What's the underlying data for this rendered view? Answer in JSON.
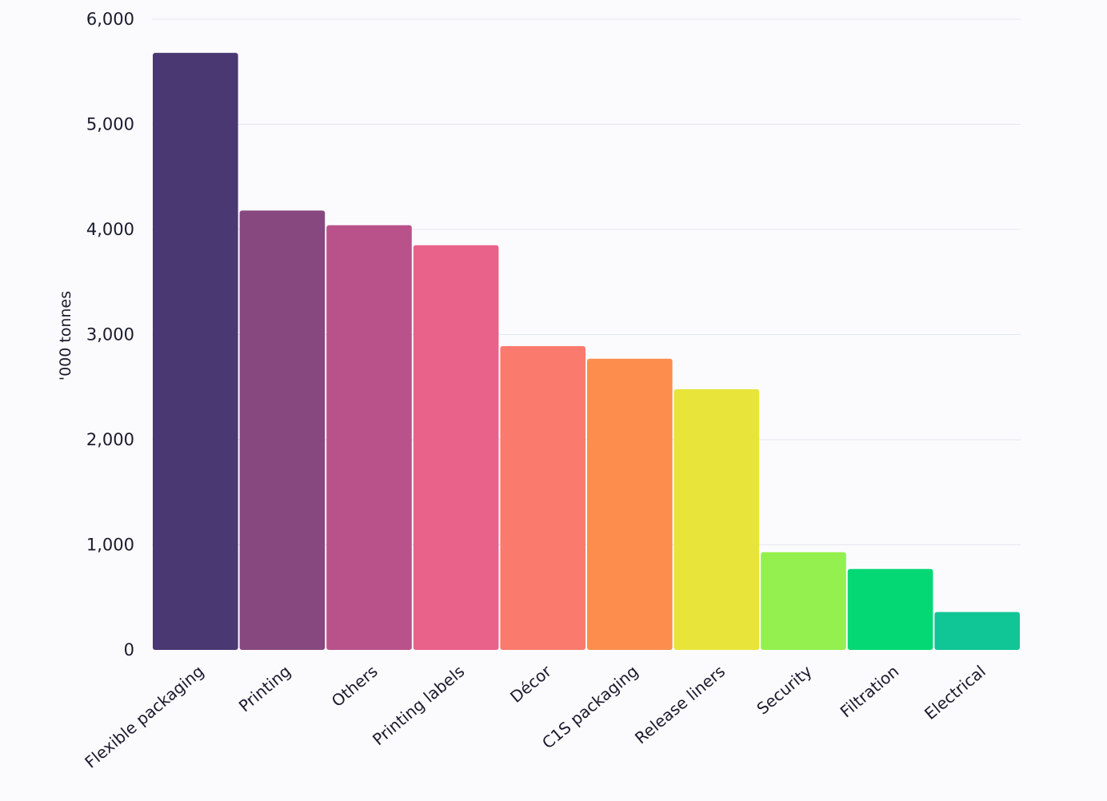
{
  "chart_data": {
    "type": "bar",
    "title": "",
    "xlabel": "",
    "ylabel": "'000 tonnes",
    "ylim": [
      0,
      6000
    ],
    "yticks": [
      0,
      1000,
      2000,
      3000,
      4000,
      5000,
      6000
    ],
    "ytick_labels": [
      "0",
      "1,000",
      "2,000",
      "3,000",
      "4,000",
      "5,000",
      "6,000"
    ],
    "grid": true,
    "categories": [
      "Flexible packaging",
      "Printing",
      "Others",
      "Printing labels",
      "Décor",
      "C1S packaging",
      "Release liners",
      "Security",
      "Filtration",
      "Electrical"
    ],
    "values": [
      5680,
      4180,
      4040,
      3850,
      2890,
      2770,
      2480,
      930,
      770,
      360
    ],
    "colors": [
      "#4a3872",
      "#87487f",
      "#b9528a",
      "#e9628a",
      "#fb7a6e",
      "#fc8d4c",
      "#e8e43a",
      "#93f04e",
      "#04d874",
      "#10c596"
    ]
  }
}
